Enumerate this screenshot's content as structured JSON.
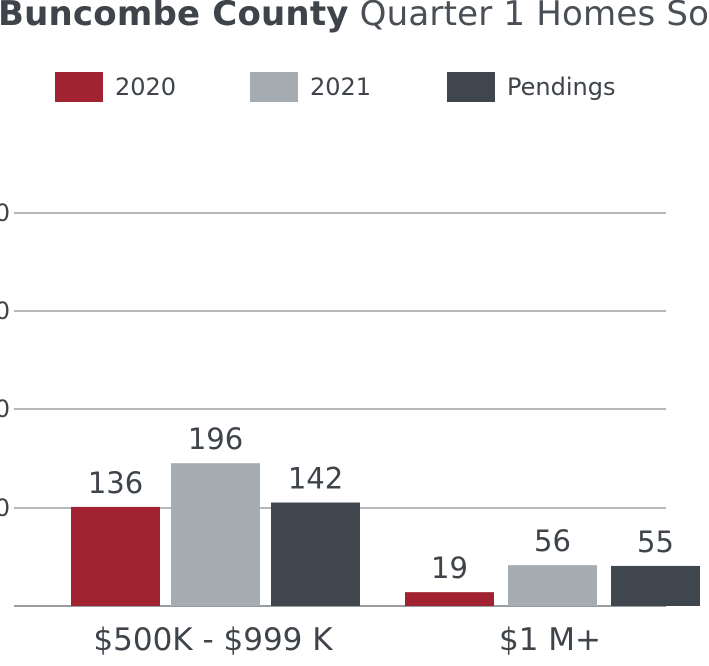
{
  "title": {
    "bold": "Buncombe County",
    "light": "Quarter 1 Homes So"
  },
  "colors": {
    "2020": "#a12231",
    "2021": "#a5acb2",
    "Pendings": "#40464d",
    "grid": "#8a8f94",
    "text": "#3f444a"
  },
  "legend": [
    {
      "label": "2020",
      "color": "#a12231"
    },
    {
      "label": "2021",
      "color": "#a5acb2"
    },
    {
      "label": "Pendings",
      "color": "#40464d"
    }
  ],
  "chart_data": {
    "type": "bar",
    "title": "Buncombe County Quarter 1 Homes So",
    "xlabel": "",
    "ylabel": "",
    "categories": [
      "$500K - $999 K",
      "$1 M+"
    ],
    "series": [
      {
        "name": "2020",
        "values": [
          136,
          19
        ]
      },
      {
        "name": "2021",
        "values": [
          196,
          56
        ]
      },
      {
        "name": "Pendings",
        "values": [
          142,
          55
        ]
      }
    ],
    "value_labels": [
      [
        "136",
        "196",
        "142"
      ],
      [
        "19",
        "56",
        "55"
      ]
    ],
    "y_tick_labels": [
      "0",
      "0",
      "0",
      "0"
    ],
    "ylim": [
      0,
      540
    ],
    "grid": true,
    "legend_position": "top-left"
  }
}
